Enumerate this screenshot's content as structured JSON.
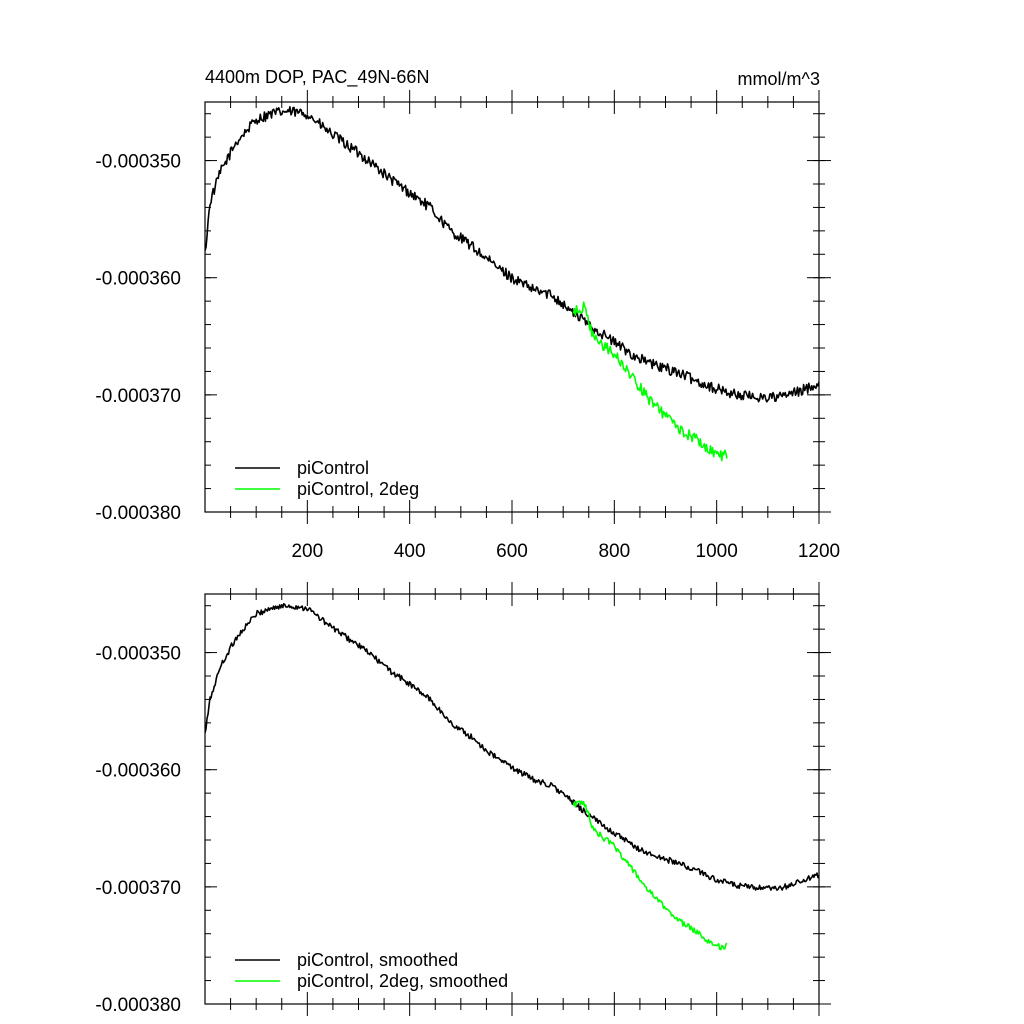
{
  "chart_data": [
    {
      "type": "line",
      "title_left": "4400m DOP, PAC_49N-66N",
      "title_right": "mmol/m^3",
      "xlim": [
        0,
        1200
      ],
      "ylim": [
        -0.00038,
        -0.000345
      ],
      "x_ticks": [
        200,
        400,
        600,
        800,
        1000,
        1200
      ],
      "x_tick_labels": [
        "200",
        "400",
        "600",
        "800",
        "1000",
        "1200"
      ],
      "y_ticks": [
        -0.00035,
        -0.00036,
        -0.00037,
        -0.00038
      ],
      "y_tick_labels": [
        "-0.000350",
        "-0.000360",
        "-0.000370",
        "-0.000380"
      ],
      "legend_position": "bottom-left",
      "series": [
        {
          "name": "piControl",
          "color": "#000000",
          "x": [
            0,
            10,
            30,
            60,
            100,
            130,
            160,
            200,
            240,
            280,
            320,
            360,
            400,
            440,
            480,
            520,
            560,
            600,
            640,
            680,
            720,
            760,
            800,
            840,
            880,
            920,
            960,
            1000,
            1040,
            1080,
            1120,
            1160,
            1200
          ],
          "values": [
            -0.000358,
            -0.0003535,
            -0.000351,
            -0.0003485,
            -0.0003465,
            -0.000346,
            -0.0003458,
            -0.000346,
            -0.0003475,
            -0.00034875,
            -0.00035,
            -0.0003515,
            -0.00035275,
            -0.000354,
            -0.000356,
            -0.00035725,
            -0.00035875,
            -0.00036,
            -0.000361,
            -0.0003615,
            -0.000363,
            -0.0003643,
            -0.0003655,
            -0.0003667,
            -0.0003675,
            -0.000368,
            -0.0003688,
            -0.0003695,
            -0.00037,
            -0.0003702,
            -0.0003702,
            -0.00036975,
            -0.000369
          ]
        },
        {
          "name": "piControl, 2deg",
          "color": "#00ff00",
          "x": [
            720,
            740,
            760,
            800,
            840,
            870,
            900,
            930,
            960,
            990,
            1010,
            1020
          ],
          "values": [
            -0.000363,
            -0.0003625,
            -0.0003652,
            -0.0003665,
            -0.0003688,
            -0.0003705,
            -0.0003718,
            -0.000373,
            -0.0003738,
            -0.0003748,
            -0.0003752,
            -0.000375
          ]
        }
      ]
    },
    {
      "type": "line",
      "xlim": [
        0,
        1200
      ],
      "ylim": [
        -0.00038,
        -0.000345
      ],
      "y_ticks": [
        -0.00035,
        -0.00036,
        -0.00037,
        -0.00038
      ],
      "y_tick_labels": [
        "-0.000350",
        "-0.000360",
        "-0.000370",
        "-0.000380"
      ],
      "legend_position": "bottom-left",
      "series": [
        {
          "name": "piControl, smoothed",
          "color": "#000000",
          "x": [
            0,
            10,
            30,
            60,
            100,
            130,
            160,
            200,
            240,
            280,
            320,
            360,
            400,
            440,
            480,
            520,
            560,
            600,
            640,
            680,
            720,
            760,
            800,
            840,
            880,
            920,
            960,
            1000,
            1040,
            1080,
            1120,
            1160,
            1200
          ],
          "values": [
            -0.000357,
            -0.000354,
            -0.0003512,
            -0.0003488,
            -0.0003467,
            -0.0003462,
            -0.000346,
            -0.0003462,
            -0.0003476,
            -0.0003488,
            -0.00035,
            -0.0003515,
            -0.0003527,
            -0.000354,
            -0.000356,
            -0.0003572,
            -0.0003587,
            -0.0003598,
            -0.0003608,
            -0.0003614,
            -0.0003628,
            -0.0003642,
            -0.0003654,
            -0.0003666,
            -0.0003674,
            -0.0003679,
            -0.0003686,
            -0.0003694,
            -0.0003699,
            -0.0003701,
            -0.0003702,
            -0.0003696,
            -0.000369
          ]
        },
        {
          "name": "piControl, 2deg, smoothed",
          "color": "#00ff00",
          "x": [
            720,
            740,
            760,
            800,
            840,
            870,
            900,
            930,
            960,
            990,
            1010,
            1020
          ],
          "values": [
            -0.000363,
            -0.0003627,
            -0.0003652,
            -0.0003665,
            -0.0003688,
            -0.0003705,
            -0.0003718,
            -0.000373,
            -0.0003738,
            -0.0003748,
            -0.0003752,
            -0.000375
          ]
        }
      ]
    }
  ]
}
